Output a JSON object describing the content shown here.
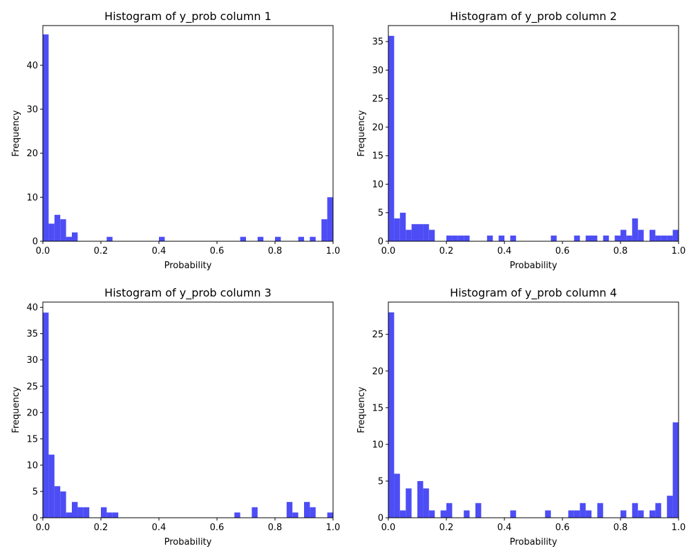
{
  "chart_data": [
    {
      "type": "bar",
      "title": "Histogram of y_prob column 1",
      "xlabel": "Probability",
      "ylabel": "Frequency",
      "color": "#4d4df5",
      "xlim": [
        0,
        1
      ],
      "ylim": [
        0,
        49
      ],
      "xticks": [
        "0.0",
        "0.2",
        "0.4",
        "0.6",
        "0.8",
        "1.0"
      ],
      "yticks": [
        0,
        10,
        20,
        30,
        40
      ],
      "bin_width": 0.02,
      "bins": [
        0.0,
        0.02,
        0.04,
        0.06,
        0.08,
        0.1,
        0.12,
        0.14,
        0.16,
        0.18,
        0.2,
        0.22,
        0.24,
        0.26,
        0.28,
        0.3,
        0.32,
        0.34,
        0.36,
        0.38,
        0.4,
        0.42,
        0.44,
        0.46,
        0.48,
        0.5,
        0.52,
        0.54,
        0.56,
        0.58,
        0.6,
        0.62,
        0.64,
        0.66,
        0.68,
        0.7,
        0.72,
        0.74,
        0.76,
        0.78,
        0.8,
        0.82,
        0.84,
        0.86,
        0.88,
        0.9,
        0.92,
        0.94,
        0.96,
        0.98
      ],
      "values": [
        47,
        4,
        6,
        5,
        1,
        2,
        0,
        0,
        0,
        0,
        0,
        1,
        0,
        0,
        0,
        0,
        0,
        0,
        0,
        0,
        1,
        0,
        0,
        0,
        0,
        0,
        0,
        0,
        0,
        0,
        0,
        0,
        0,
        0,
        1,
        0,
        0,
        1,
        0,
        0,
        1,
        0,
        0,
        0,
        1,
        0,
        1,
        0,
        5,
        10
      ]
    },
    {
      "type": "bar",
      "title": "Histogram of y_prob column 2",
      "xlabel": "Probability",
      "ylabel": "Frequency",
      "color": "#4d4df5",
      "xlim": [
        0,
        1
      ],
      "ylim": [
        0,
        37.8
      ],
      "xticks": [
        "0.0",
        "0.2",
        "0.4",
        "0.6",
        "0.8",
        "1.0"
      ],
      "yticks": [
        0,
        5,
        10,
        15,
        20,
        25,
        30,
        35
      ],
      "bin_width": 0.02,
      "bins": [
        0.0,
        0.02,
        0.04,
        0.06,
        0.08,
        0.1,
        0.12,
        0.14,
        0.16,
        0.18,
        0.2,
        0.22,
        0.24,
        0.26,
        0.28,
        0.3,
        0.32,
        0.34,
        0.36,
        0.38,
        0.4,
        0.42,
        0.44,
        0.46,
        0.48,
        0.5,
        0.52,
        0.54,
        0.56,
        0.58,
        0.6,
        0.62,
        0.64,
        0.66,
        0.68,
        0.7,
        0.72,
        0.74,
        0.76,
        0.78,
        0.8,
        0.82,
        0.84,
        0.86,
        0.88,
        0.9,
        0.92,
        0.94,
        0.96,
        0.98
      ],
      "values": [
        36,
        4,
        5,
        2,
        3,
        3,
        3,
        2,
        0,
        0,
        1,
        1,
        1,
        1,
        0,
        0,
        0,
        1,
        0,
        1,
        0,
        1,
        0,
        0,
        0,
        0,
        0,
        0,
        1,
        0,
        0,
        0,
        1,
        0,
        1,
        1,
        0,
        1,
        0,
        1,
        2,
        1,
        4,
        2,
        0,
        2,
        1,
        1,
        1,
        2
      ]
    },
    {
      "type": "bar",
      "title": "Histogram of y_prob column 3",
      "xlabel": "Probability",
      "ylabel": "Frequency",
      "color": "#4d4df5",
      "xlim": [
        0,
        1
      ],
      "ylim": [
        0,
        41
      ],
      "xticks": [
        "0.0",
        "0.2",
        "0.4",
        "0.6",
        "0.8",
        "1.0"
      ],
      "yticks": [
        0,
        5,
        10,
        15,
        20,
        25,
        30,
        35,
        40
      ],
      "bin_width": 0.02,
      "bins": [
        0.0,
        0.02,
        0.04,
        0.06,
        0.08,
        0.1,
        0.12,
        0.14,
        0.16,
        0.18,
        0.2,
        0.22,
        0.24,
        0.26,
        0.28,
        0.3,
        0.32,
        0.34,
        0.36,
        0.38,
        0.4,
        0.42,
        0.44,
        0.46,
        0.48,
        0.5,
        0.52,
        0.54,
        0.56,
        0.58,
        0.6,
        0.62,
        0.64,
        0.66,
        0.68,
        0.7,
        0.72,
        0.74,
        0.76,
        0.78,
        0.8,
        0.82,
        0.84,
        0.86,
        0.88,
        0.9,
        0.92,
        0.94,
        0.96,
        0.98
      ],
      "values": [
        39,
        12,
        6,
        5,
        1,
        3,
        2,
        2,
        0,
        0,
        2,
        1,
        1,
        0,
        0,
        0,
        0,
        0,
        0,
        0,
        0,
        0,
        0,
        0,
        0,
        0,
        0,
        0,
        0,
        0,
        0,
        0,
        0,
        1,
        0,
        0,
        2,
        0,
        0,
        0,
        0,
        0,
        3,
        1,
        0,
        3,
        2,
        0,
        0,
        1
      ]
    },
    {
      "type": "bar",
      "title": "Histogram of y_prob column 4",
      "xlabel": "Probability",
      "ylabel": "Frequency",
      "color": "#4d4df5",
      "xlim": [
        0,
        1
      ],
      "ylim": [
        0,
        29.4
      ],
      "xticks": [
        "0.0",
        "0.2",
        "0.4",
        "0.6",
        "0.8",
        "1.0"
      ],
      "yticks": [
        0,
        5,
        10,
        15,
        20,
        25
      ],
      "bin_width": 0.02,
      "bins": [
        0.0,
        0.02,
        0.04,
        0.06,
        0.08,
        0.1,
        0.12,
        0.14,
        0.16,
        0.18,
        0.2,
        0.22,
        0.24,
        0.26,
        0.28,
        0.3,
        0.32,
        0.34,
        0.36,
        0.38,
        0.4,
        0.42,
        0.44,
        0.46,
        0.48,
        0.5,
        0.52,
        0.54,
        0.56,
        0.58,
        0.6,
        0.62,
        0.64,
        0.66,
        0.68,
        0.7,
        0.72,
        0.74,
        0.76,
        0.78,
        0.8,
        0.82,
        0.84,
        0.86,
        0.88,
        0.9,
        0.92,
        0.94,
        0.96,
        0.98
      ],
      "values": [
        28,
        6,
        1,
        4,
        0,
        5,
        4,
        1,
        0,
        1,
        2,
        0,
        0,
        1,
        0,
        2,
        0,
        0,
        0,
        0,
        0,
        1,
        0,
        0,
        0,
        0,
        0,
        1,
        0,
        0,
        0,
        1,
        1,
        2,
        1,
        0,
        2,
        0,
        0,
        0,
        1,
        0,
        2,
        1,
        0,
        1,
        2,
        0,
        3,
        13
      ]
    }
  ]
}
